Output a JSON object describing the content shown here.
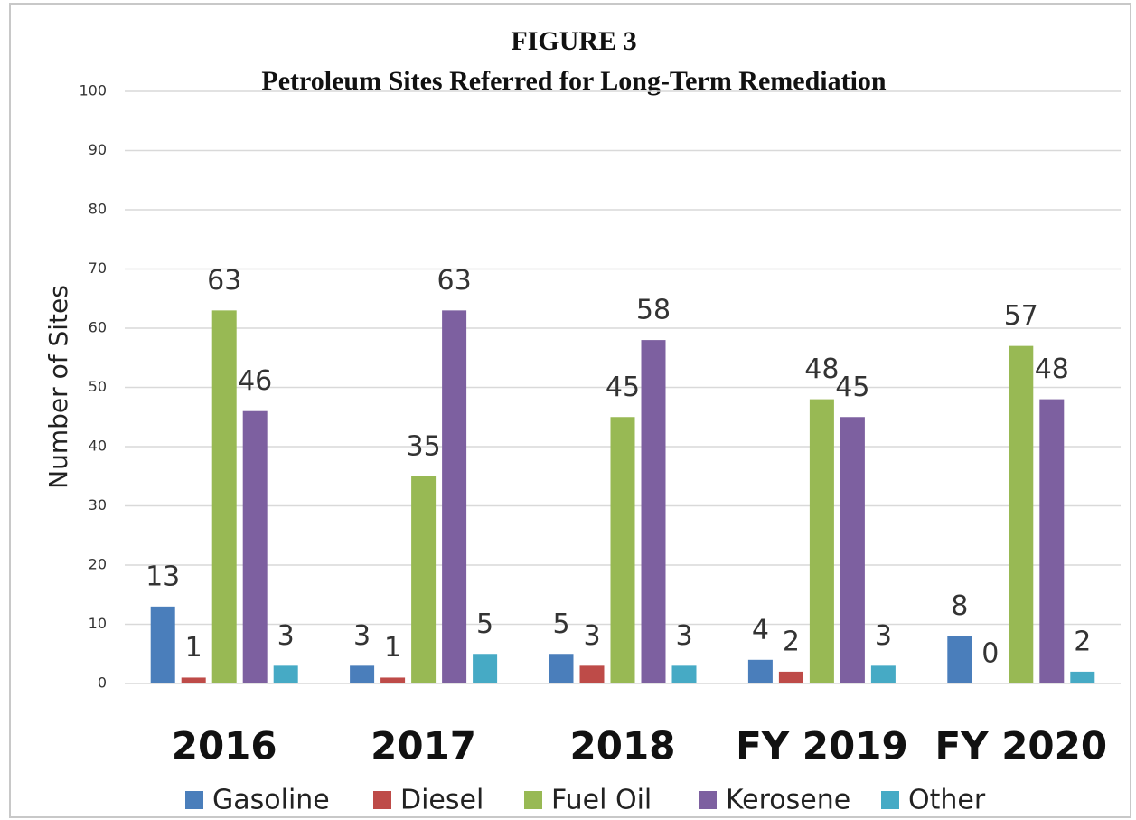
{
  "chart_data": {
    "type": "bar",
    "title": "FIGURE 3",
    "subtitle": "Petroleum Sites Referred for Long-Term Remediation",
    "y_label": "Number of Sites",
    "categories": [
      "2016",
      "2017",
      "2018",
      "FY 2019",
      "FY 2020"
    ],
    "series": [
      {
        "name": "Gasoline",
        "color": "#4a7ebb",
        "values": [
          13,
          3,
          5,
          4,
          8
        ]
      },
      {
        "name": "Diesel",
        "color": "#be4b48",
        "values": [
          1,
          1,
          3,
          2,
          0
        ]
      },
      {
        "name": "Fuel Oil",
        "color": "#98b954",
        "values": [
          63,
          35,
          45,
          48,
          57
        ]
      },
      {
        "name": "Kerosene",
        "color": "#7d60a0",
        "values": [
          46,
          63,
          58,
          45,
          48
        ]
      },
      {
        "name": "Other",
        "color": "#46aac5",
        "values": [
          3,
          5,
          3,
          3,
          2
        ]
      }
    ],
    "ylim": [
      0,
      100
    ],
    "yticks": [
      0,
      10,
      20,
      30,
      40,
      50,
      60,
      70,
      80,
      90,
      100
    ],
    "grid": true,
    "legend": "bottom",
    "data_labels": true
  }
}
